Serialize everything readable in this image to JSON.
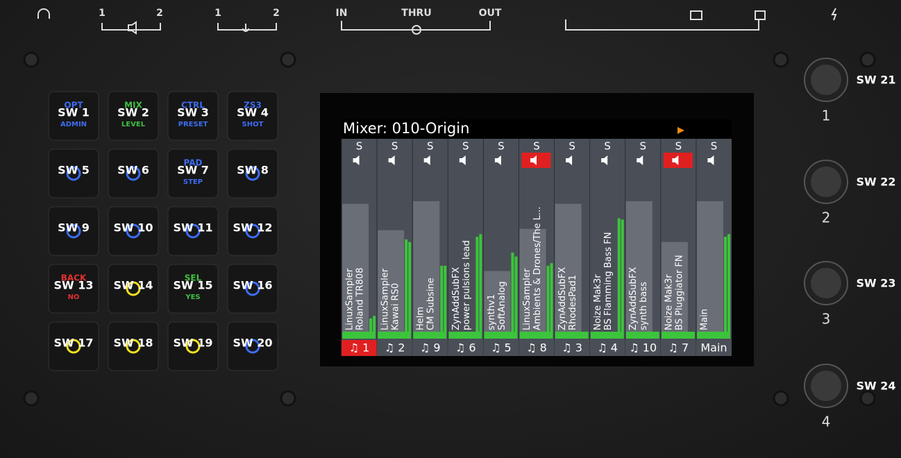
{
  "top_bar": {
    "out_1": "1",
    "out_2": "2",
    "in_1": "1",
    "in_2": "2",
    "midi_in": "IN",
    "midi_thru": "THRU",
    "midi_out": "OUT"
  },
  "buttons": [
    {
      "sw": "SW 1",
      "top": "OPT",
      "bottom": "ADMIN",
      "color": "#3d6cf2"
    },
    {
      "sw": "SW 2",
      "top": "MIX",
      "bottom": "LEVEL",
      "color": "#40c040"
    },
    {
      "sw": "SW 3",
      "top": "CTRL",
      "bottom": "PRESET",
      "color": "#3d6cf2"
    },
    {
      "sw": "SW 4",
      "top": "ZS3",
      "bottom": "SHOT",
      "color": "#3d6cf2"
    },
    {
      "sw": "SW 5",
      "color": "#3d6cf2"
    },
    {
      "sw": "SW 6",
      "color": "#3d6cf2"
    },
    {
      "sw": "SW 7",
      "top": "PAD",
      "bottom": "STEP",
      "color": "#3d6cf2"
    },
    {
      "sw": "SW 8",
      "color": "#3d6cf2"
    },
    {
      "sw": "SW 9",
      "color": "#3d6cf2"
    },
    {
      "sw": "SW 10",
      "color": "#3d6cf2"
    },
    {
      "sw": "SW 11",
      "color": "#3d6cf2"
    },
    {
      "sw": "SW 12",
      "color": "#3d6cf2"
    },
    {
      "sw": "SW 13",
      "top": "BACK",
      "bottom": "NO",
      "color": "#e03030"
    },
    {
      "sw": "SW 14",
      "color": "#f0e020"
    },
    {
      "sw": "SW 15",
      "top": "SEL",
      "bottom": "YES",
      "color": "#40c040"
    },
    {
      "sw": "SW 16",
      "color": "#3d6cf2"
    },
    {
      "sw": "SW 17",
      "color": "#f0e020"
    },
    {
      "sw": "SW 18",
      "color": "#f0e020"
    },
    {
      "sw": "SW 19",
      "color": "#f0e020"
    },
    {
      "sw": "SW 20",
      "color": "#3d6cf2"
    }
  ],
  "knobs": [
    {
      "sw": "SW 21",
      "number": "1"
    },
    {
      "sw": "SW 22",
      "number": "2"
    },
    {
      "sw": "SW 23",
      "number": "3"
    },
    {
      "sw": "SW 24",
      "number": "4"
    }
  ],
  "mixer": {
    "title": "Mixer: 010-Origin",
    "solo": "S",
    "strips": [
      {
        "engine": "LinuxSampler",
        "preset": "Roland TR808",
        "channel": "♫ 1",
        "fader": 0.97,
        "meter": [
          0.1,
          0.12
        ],
        "muted": false,
        "selected": true
      },
      {
        "engine": "LinuxSampler",
        "preset": "Kawai RS0",
        "channel": "♫ 2",
        "fader": 0.77,
        "meter": [
          0.7,
          0.68
        ],
        "muted": false,
        "selected": false
      },
      {
        "engine": "Helm",
        "preset": "CM Subsine",
        "channel": "♫ 9",
        "fader": 0.99,
        "meter": [
          0.5,
          0.5
        ],
        "muted": false,
        "selected": false
      },
      {
        "engine": "ZynAddSubFX",
        "preset": "power pulsions lead",
        "channel": "♫ 6",
        "fader": 0.0,
        "meter": [
          0.72,
          0.74
        ],
        "muted": false,
        "selected": false
      },
      {
        "engine": "synthv1",
        "preset": "SoftAnalog",
        "channel": "♫ 5",
        "fader": 0.46,
        "meter": [
          0.6,
          0.57
        ],
        "muted": false,
        "selected": false
      },
      {
        "engine": "LinuxSampler",
        "preset": "Ambients & Drones/The L...",
        "channel": "♫ 8",
        "fader": 0.78,
        "meter": [
          0.5,
          0.52
        ],
        "muted": true,
        "selected": false
      },
      {
        "engine": "ZynAddSubFX",
        "preset": "RhodesPad1",
        "channel": "♫ 3",
        "fader": 0.97,
        "meter": [
          0,
          0
        ],
        "muted": false,
        "selected": false
      },
      {
        "engine": "Noize Mak3r",
        "preset": "BS Flamming Bass FN",
        "channel": "♫ 4",
        "fader": 0.0,
        "meter": [
          0.86,
          0.85
        ],
        "muted": false,
        "selected": false
      },
      {
        "engine": "ZynAddSubFX",
        "preset": "synth bass",
        "channel": "♫ 10",
        "fader": 0.99,
        "meter": [
          0,
          0
        ],
        "muted": false,
        "selected": false
      },
      {
        "engine": "Noize Mak3r",
        "preset": "BS Pluggiator FN",
        "channel": "♫ 7",
        "fader": 0.68,
        "meter": [
          0,
          0
        ],
        "muted": true,
        "selected": false
      },
      {
        "engine": "Main",
        "channel": "Main",
        "fader": 0.99,
        "meter": [
          0.72,
          0.74
        ],
        "muted": false,
        "selected": false
      }
    ]
  }
}
